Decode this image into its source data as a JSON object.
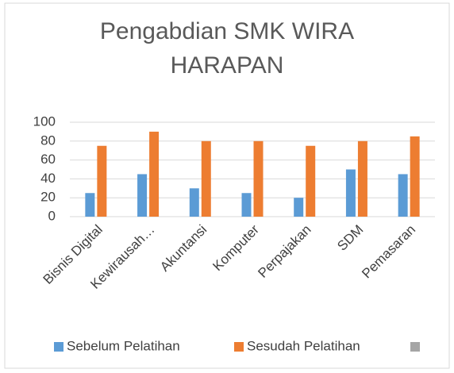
{
  "chart_data": {
    "type": "bar",
    "title": "Pengabdian SMK WIRA HARAPAN",
    "categories": [
      "Bisnis Digital",
      "Kewirausah…",
      "Akuntansi",
      "Komputer",
      "Perpajakan",
      "SDM",
      "Pemasaran"
    ],
    "series": [
      {
        "name": "Sebelum Pelatihan",
        "color": "#5b9bd5",
        "values": [
          25,
          45,
          30,
          25,
          20,
          50,
          45
        ]
      },
      {
        "name": "Sesudah Pelatihan",
        "color": "#ed7d31",
        "values": [
          75,
          90,
          80,
          80,
          75,
          80,
          85
        ]
      },
      {
        "color": "#a5a5a5",
        "values": [
          null,
          null,
          null,
          null,
          null,
          null,
          null
        ]
      }
    ],
    "ylim": [
      0,
      100
    ],
    "yticks": [
      0,
      20,
      40,
      60,
      80,
      100
    ],
    "grid": true,
    "legend": "bottom"
  }
}
